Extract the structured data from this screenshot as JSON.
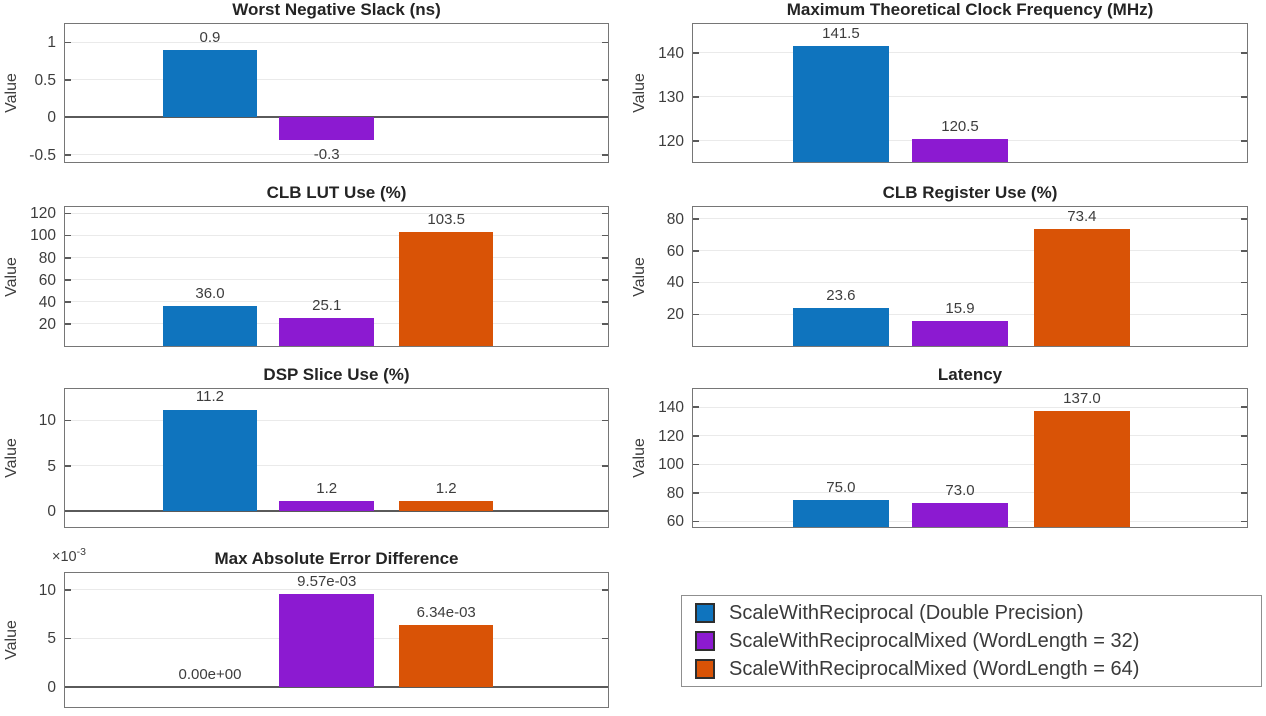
{
  "figure": {
    "background": "#ffffff",
    "grid": "horizontal",
    "legend_position": "bottom-right-cell"
  },
  "series": [
    {
      "name": "ScaleWithReciprocal (Double Precision)",
      "color": "#0F74BE"
    },
    {
      "name": "ScaleWithReciprocalMixed (WordLength = 32)",
      "color": "#8C1AD1"
    },
    {
      "name": "ScaleWithReciprocalMixed (WordLength = 64)",
      "color": "#D95306"
    }
  ],
  "chart_data": [
    {
      "type": "bar",
      "title": "Worst Negative Slack (ns)",
      "ylabel": "Value",
      "ylim": [
        -0.6,
        1.27
      ],
      "yticks": [
        -0.5,
        0,
        0.5,
        1
      ],
      "ytick_labels": [
        "-0.5",
        "0",
        "0.5",
        "1"
      ],
      "values": [
        0.9,
        -0.3,
        null
      ],
      "labels": [
        "0.9",
        "-0.3",
        null
      ],
      "zero_line": true
    },
    {
      "type": "bar",
      "title": "Maximum Theoretical Clock Frequency (MHz)",
      "ylabel": "Value",
      "ylim": [
        115.2,
        147
      ],
      "yticks": [
        120,
        130,
        140
      ],
      "ytick_labels": [
        "120",
        "130",
        "140"
      ],
      "values": [
        141.5,
        120.5,
        null
      ],
      "labels": [
        "141.5",
        "120.5",
        null
      ],
      "zero_line": false
    },
    {
      "type": "bar",
      "title": "CLB LUT Use (%)",
      "ylabel": "Value",
      "ylim": [
        0,
        127.5
      ],
      "yticks": [
        20,
        40,
        60,
        80,
        100,
        120
      ],
      "ytick_labels": [
        "20",
        "40",
        "60",
        "80",
        "100",
        "120"
      ],
      "values": [
        36.0,
        25.1,
        103.5
      ],
      "labels": [
        "36.0",
        "25.1",
        "103.5"
      ],
      "zero_line": false
    },
    {
      "type": "bar",
      "title": "CLB Register Use (%)",
      "ylabel": "Value",
      "ylim": [
        0,
        88.6
      ],
      "yticks": [
        20,
        40,
        60,
        80
      ],
      "ytick_labels": [
        "20",
        "40",
        "60",
        "80"
      ],
      "values": [
        23.6,
        15.9,
        73.4
      ],
      "labels": [
        "23.6",
        "15.9",
        "73.4"
      ],
      "zero_line": false
    },
    {
      "type": "bar",
      "title": "DSP Slice Use (%)",
      "ylabel": "Value",
      "ylim": [
        -1.71,
        13.67
      ],
      "yticks": [
        0,
        5,
        10
      ],
      "ytick_labels": [
        "0",
        "5",
        "10"
      ],
      "values": [
        11.2,
        1.2,
        1.2
      ],
      "labels": [
        "11.2",
        "1.2",
        "1.2"
      ],
      "zero_line": true
    },
    {
      "type": "bar",
      "title": "Latency",
      "ylabel": "Value",
      "ylim": [
        56.1,
        154
      ],
      "yticks": [
        60,
        80,
        100,
        120,
        140
      ],
      "ytick_labels": [
        "60",
        "80",
        "100",
        "120",
        "140"
      ],
      "values": [
        75.0,
        73.0,
        137.0
      ],
      "labels": [
        "75.0",
        "73.0",
        "137.0"
      ],
      "zero_line": false
    },
    {
      "type": "bar",
      "title": "Max Absolute Error Difference",
      "ylabel": "Value",
      "multiplier": {
        "base": "×10",
        "exponent": "-3"
      },
      "ylim": [
        -2.12,
        11.96
      ],
      "yticks": [
        0,
        5,
        10
      ],
      "ytick_labels": [
        "0",
        "5",
        "10"
      ],
      "values": [
        0,
        9.57,
        6.34
      ],
      "labels": [
        "0.00e+00",
        "9.57e-03",
        "6.34e-03"
      ],
      "true_values": [
        0.0,
        0.00957,
        0.00634
      ],
      "zero_line": true
    }
  ]
}
